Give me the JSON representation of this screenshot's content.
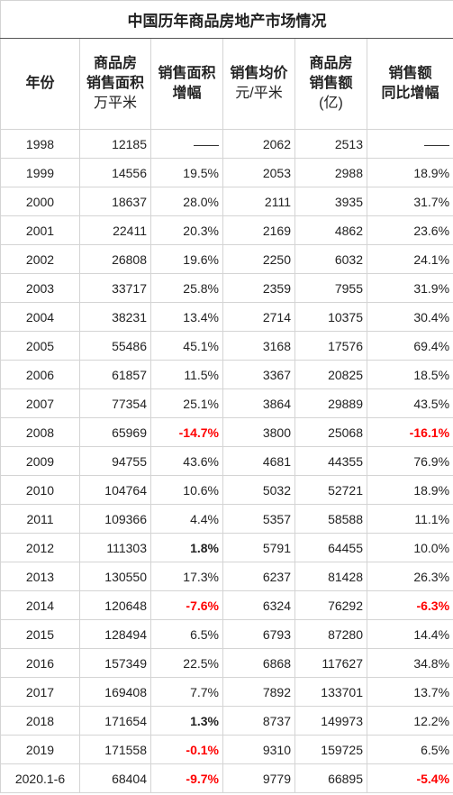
{
  "title": "中国历年商品房地产市场情况",
  "header": [
    [
      "年份"
    ],
    [
      "商品房",
      "销售面积",
      "万平米"
    ],
    [
      "销售面积",
      "增幅"
    ],
    [
      "销售均价",
      "元/平米"
    ],
    [
      "商品房",
      "销售额",
      "(亿)"
    ],
    [
      "销售额",
      "同比增幅"
    ]
  ],
  "negative_color": "#ff0000",
  "rows": [
    [
      "1998",
      "12185",
      "——",
      "2062",
      "2513",
      "——"
    ],
    [
      "1999",
      "14556",
      "19.5%",
      "2053",
      "2988",
      "18.9%"
    ],
    [
      "2000",
      "18637",
      "28.0%",
      "2111",
      "3935",
      "31.7%"
    ],
    [
      "2001",
      "22411",
      "20.3%",
      "2169",
      "4862",
      "23.6%"
    ],
    [
      "2002",
      "26808",
      "19.6%",
      "2250",
      "6032",
      "24.1%"
    ],
    [
      "2003",
      "33717",
      "25.8%",
      "2359",
      "7955",
      "31.9%"
    ],
    [
      "2004",
      "38231",
      "13.4%",
      "2714",
      "10375",
      "30.4%"
    ],
    [
      "2005",
      "55486",
      "45.1%",
      "3168",
      "17576",
      "69.4%"
    ],
    [
      "2006",
      "61857",
      "11.5%",
      "3367",
      "20825",
      "18.5%"
    ],
    [
      "2007",
      "77354",
      "25.1%",
      "3864",
      "29889",
      "43.5%"
    ],
    [
      "2008",
      "65969",
      "-14.7%",
      "3800",
      "25068",
      "-16.1%"
    ],
    [
      "2009",
      "94755",
      "43.6%",
      "4681",
      "44355",
      "76.9%"
    ],
    [
      "2010",
      "104764",
      "10.6%",
      "5032",
      "52721",
      "18.9%"
    ],
    [
      "2011",
      "109366",
      "4.4%",
      "5357",
      "58588",
      "11.1%"
    ],
    [
      "2012",
      "111303",
      "1.8%",
      "5791",
      "64455",
      "10.0%"
    ],
    [
      "2013",
      "130550",
      "17.3%",
      "6237",
      "81428",
      "26.3%"
    ],
    [
      "2014",
      "120648",
      "-7.6%",
      "6324",
      "76292",
      "-6.3%"
    ],
    [
      "2015",
      "128494",
      "6.5%",
      "6793",
      "87280",
      "14.4%"
    ],
    [
      "2016",
      "157349",
      "22.5%",
      "6868",
      "117627",
      "34.8%"
    ],
    [
      "2017",
      "169408",
      "7.7%",
      "7892",
      "133701",
      "13.7%"
    ],
    [
      "2018",
      "171654",
      "1.3%",
      "8737",
      "149973",
      "12.2%"
    ],
    [
      "2019",
      "171558",
      "-0.1%",
      "9310",
      "159725",
      "6.5%"
    ],
    [
      "2020.1-6",
      "68404",
      "-9.7%",
      "9779",
      "66895",
      "-5.4%"
    ]
  ]
}
